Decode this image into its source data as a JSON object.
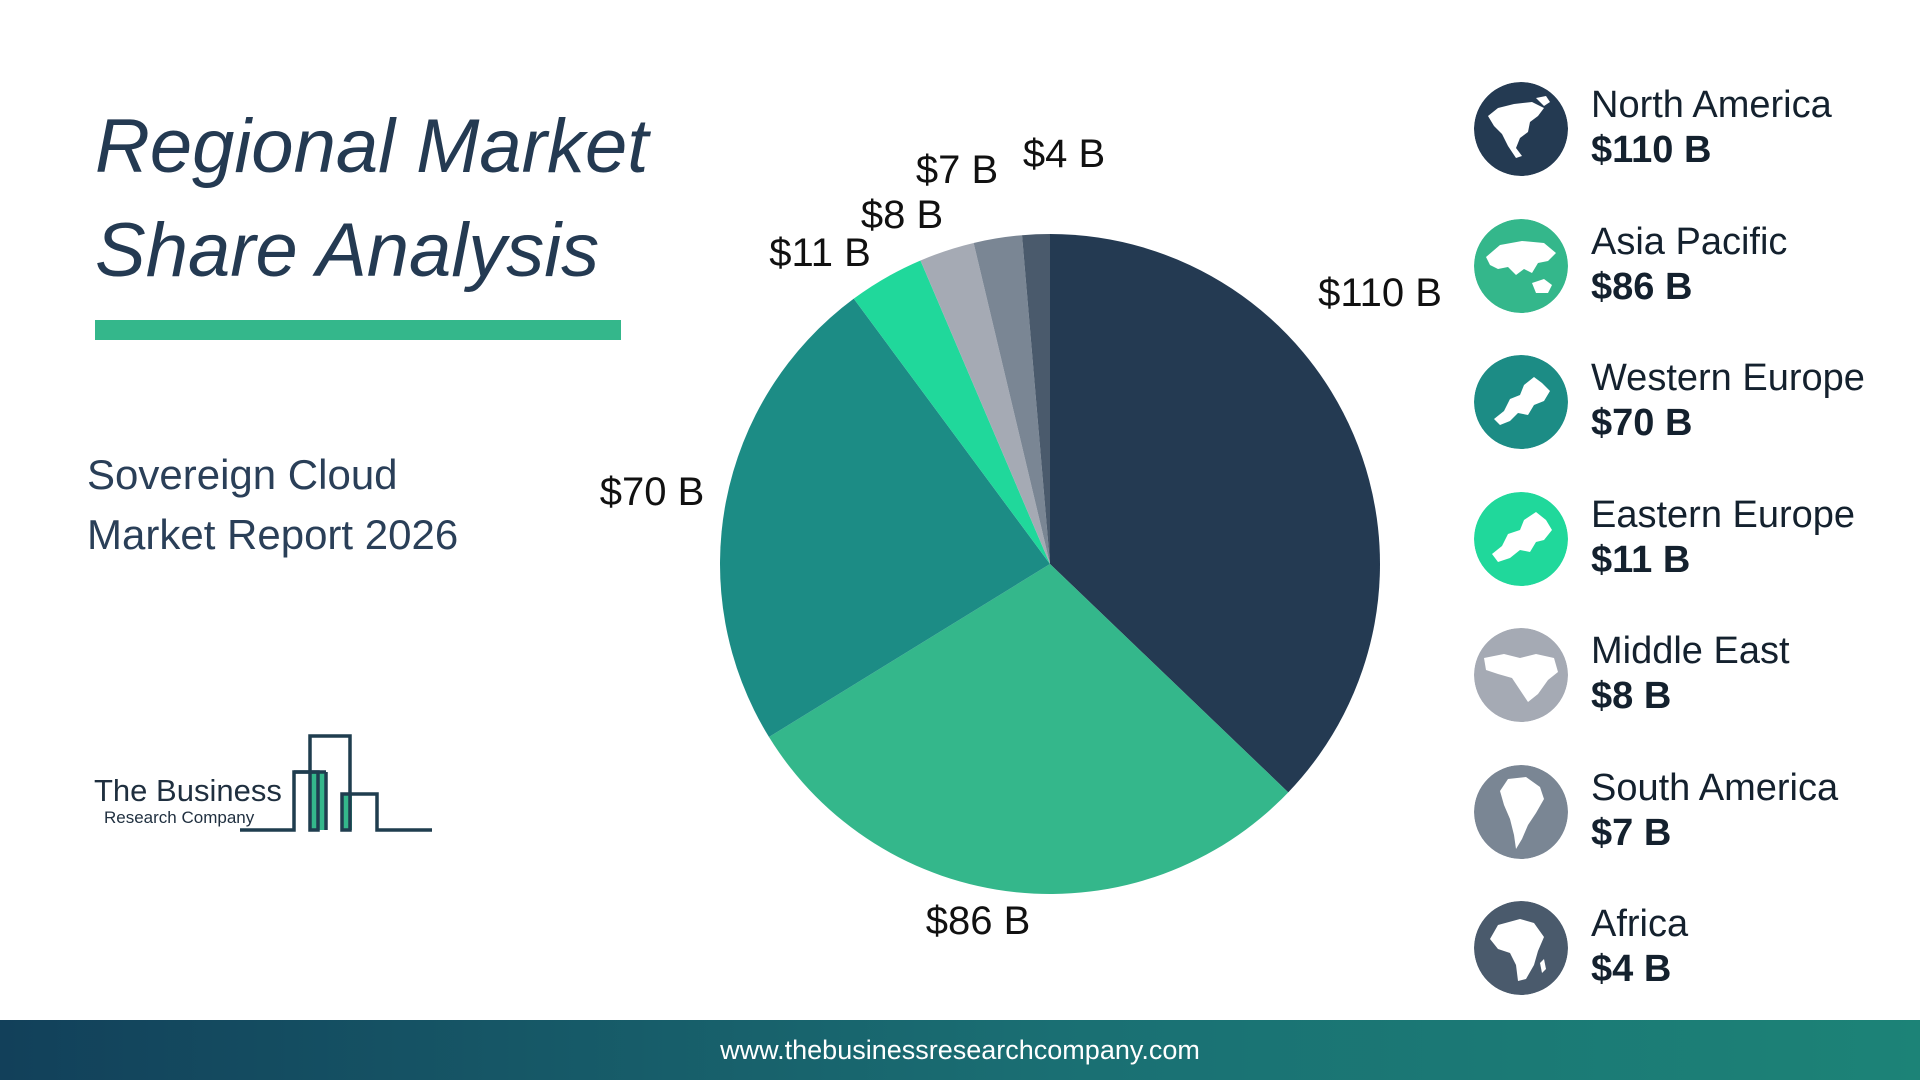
{
  "header": {
    "title_line1": "Regional Market",
    "title_line2": "Share Analysis",
    "subtitle_line1": "Sovereign Cloud",
    "subtitle_line2": "Market Report 2026"
  },
  "logo": {
    "name": "The Business",
    "tagline": "Research Company"
  },
  "footer": {
    "url": "www.thebusinessresearchcompany.com"
  },
  "colors": {
    "title": "#243a52",
    "accent_bar": "#34b78b",
    "footer_start": "#12405a",
    "footer_end": "#1c8377"
  },
  "chart_data": {
    "type": "pie",
    "title": "",
    "start_angle_deg": 0,
    "direction": "clockwise",
    "slices": [
      {
        "label": "North America",
        "value": 110,
        "value_label": "$110 B",
        "color": "#243a52",
        "icon": "north-america-globe-icon"
      },
      {
        "label": "Asia Pacific",
        "value": 86,
        "value_label": "$86 B",
        "color": "#34b78b",
        "icon": "asia-pacific-globe-icon"
      },
      {
        "label": "Western Europe",
        "value": 70,
        "value_label": "$70 B",
        "color": "#1c8c85",
        "icon": "western-europe-globe-icon"
      },
      {
        "label": "Eastern Europe",
        "value": 11,
        "value_label": "$11 B",
        "color": "#20d89b",
        "icon": "eastern-europe-globe-icon"
      },
      {
        "label": "Middle East",
        "value": 8,
        "value_label": "$8 B",
        "color": "#a5aab4",
        "icon": "middle-east-globe-icon"
      },
      {
        "label": "South America",
        "value": 7,
        "value_label": "$7 B",
        "color": "#7a8694",
        "icon": "south-america-globe-icon"
      },
      {
        "label": "Africa",
        "value": 4,
        "value_label": "$4 B",
        "color": "#4a5a6c",
        "icon": "africa-globe-icon"
      }
    ],
    "legend": "right"
  }
}
